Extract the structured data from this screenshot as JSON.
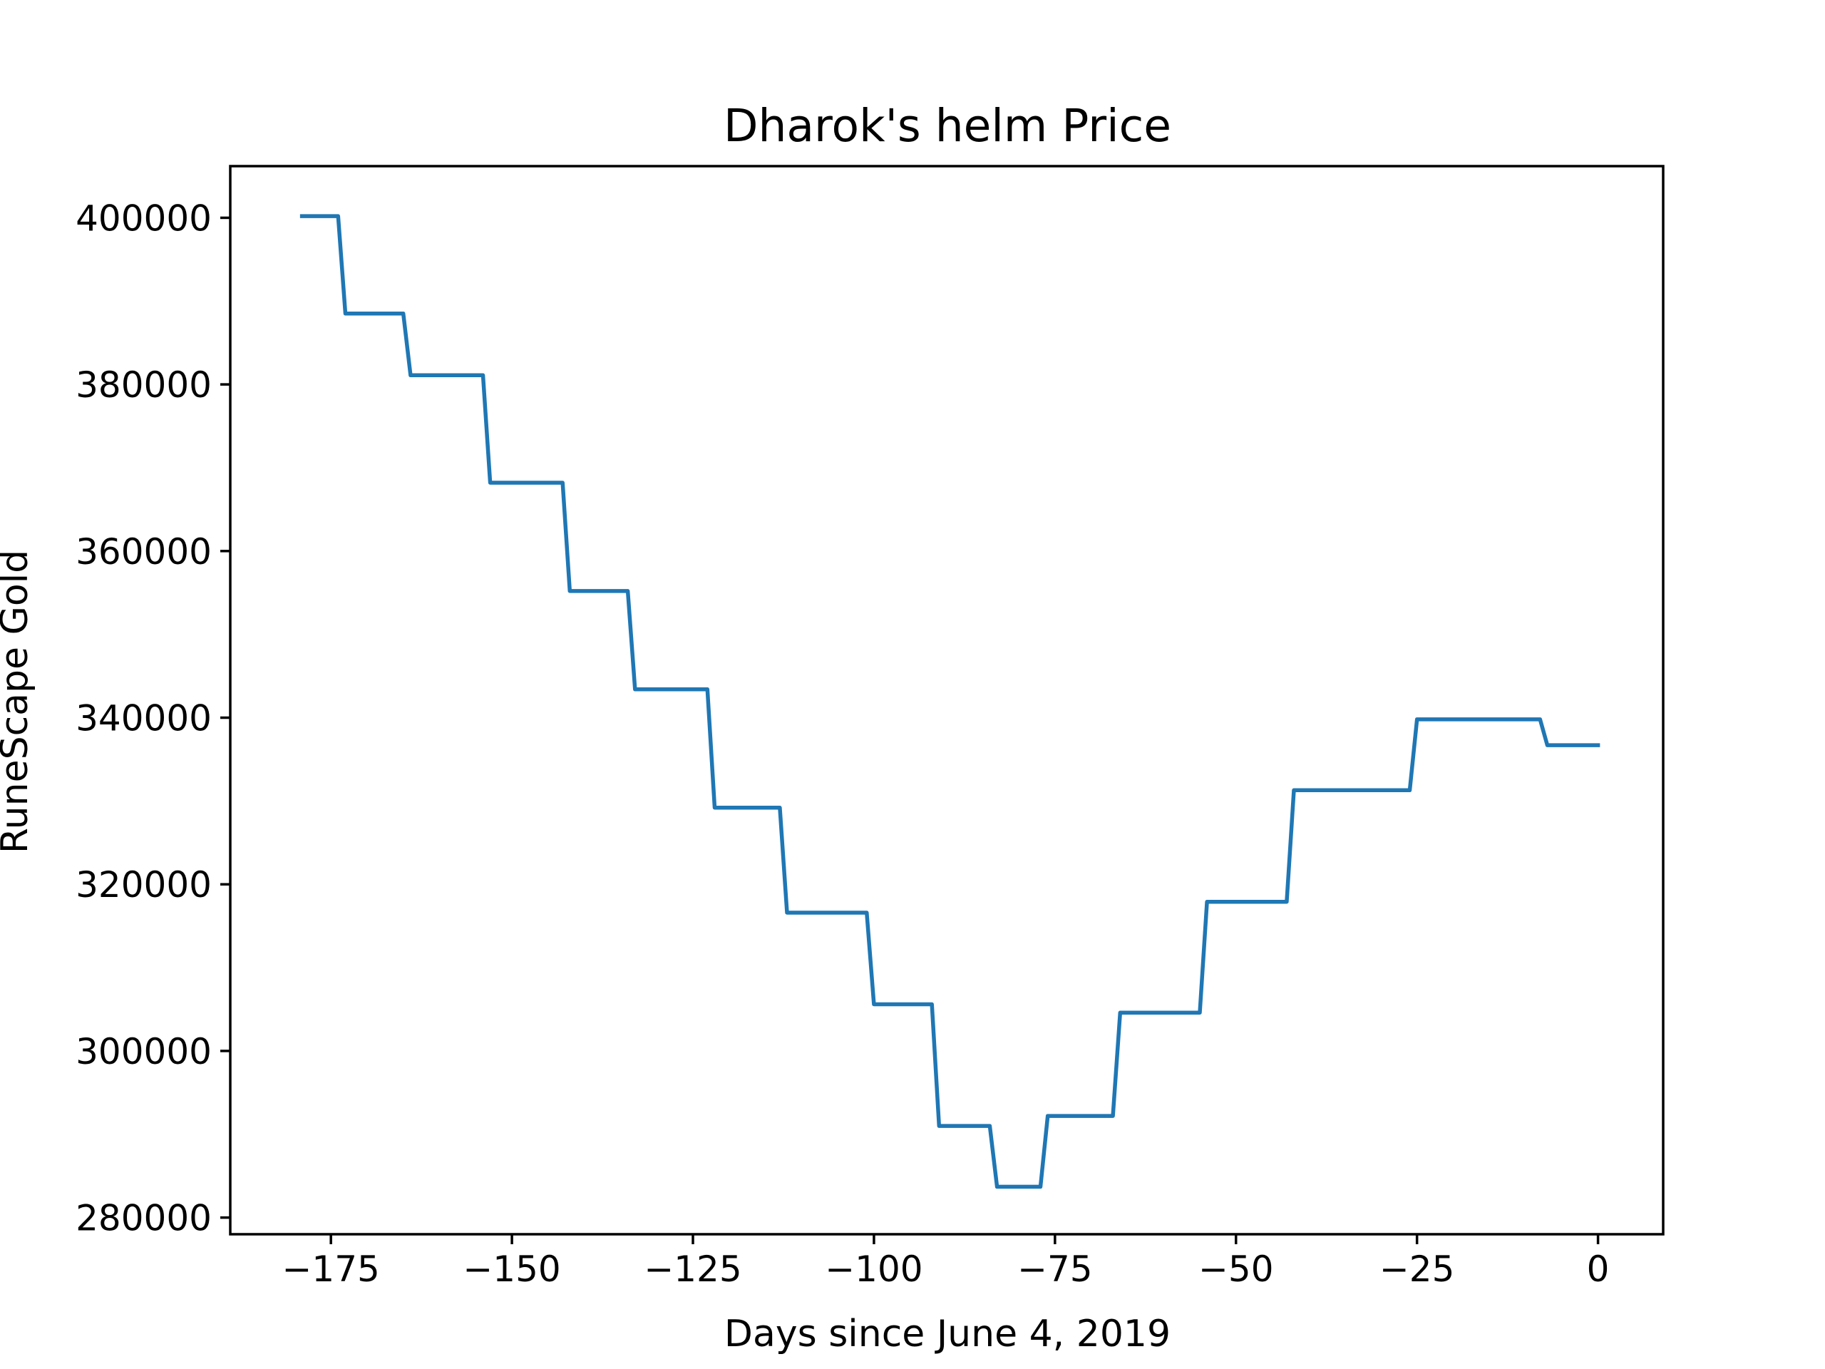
{
  "chart_data": {
    "type": "line",
    "title": "Dharok's helm Price",
    "xlabel": "Days since June 4, 2019",
    "ylabel": "RuneScape Gold",
    "xlim": [
      -188.9,
      9
    ],
    "ylim": [
      278000,
      406200
    ],
    "xticks": [
      -175,
      -150,
      -125,
      -100,
      -75,
      -50,
      -25,
      0
    ],
    "xtick_labels": [
      "−175",
      "−150",
      "−125",
      "−100",
      "−75",
      "−50",
      "−25",
      "0"
    ],
    "yticks": [
      280000,
      300000,
      320000,
      340000,
      360000,
      380000,
      400000
    ],
    "ytick_labels": [
      "280000",
      "300000",
      "320000",
      "340000",
      "360000",
      "380000",
      "400000"
    ],
    "grid": false,
    "legend": "none",
    "series": [
      {
        "color": "#1f77b4",
        "x": [
          -179,
          -174,
          -173,
          -165,
          -164,
          -154,
          -153,
          -143,
          -142,
          -134,
          -133,
          -123,
          -122,
          -113,
          -112,
          -101,
          -100,
          -92,
          -91,
          -84,
          -83,
          -77,
          -76,
          -67,
          -66,
          -55,
          -54,
          -43,
          -42,
          -26,
          -25,
          -8,
          -7,
          0
        ],
        "y": [
          400200,
          400200,
          388500,
          388500,
          381100,
          381100,
          368200,
          368200,
          355200,
          355200,
          343400,
          343400,
          329200,
          329200,
          316600,
          316600,
          305600,
          305600,
          291000,
          291000,
          283700,
          283700,
          292200,
          292200,
          304600,
          304600,
          317900,
          317900,
          331300,
          331300,
          339800,
          339800,
          336700,
          336700
        ]
      }
    ]
  }
}
